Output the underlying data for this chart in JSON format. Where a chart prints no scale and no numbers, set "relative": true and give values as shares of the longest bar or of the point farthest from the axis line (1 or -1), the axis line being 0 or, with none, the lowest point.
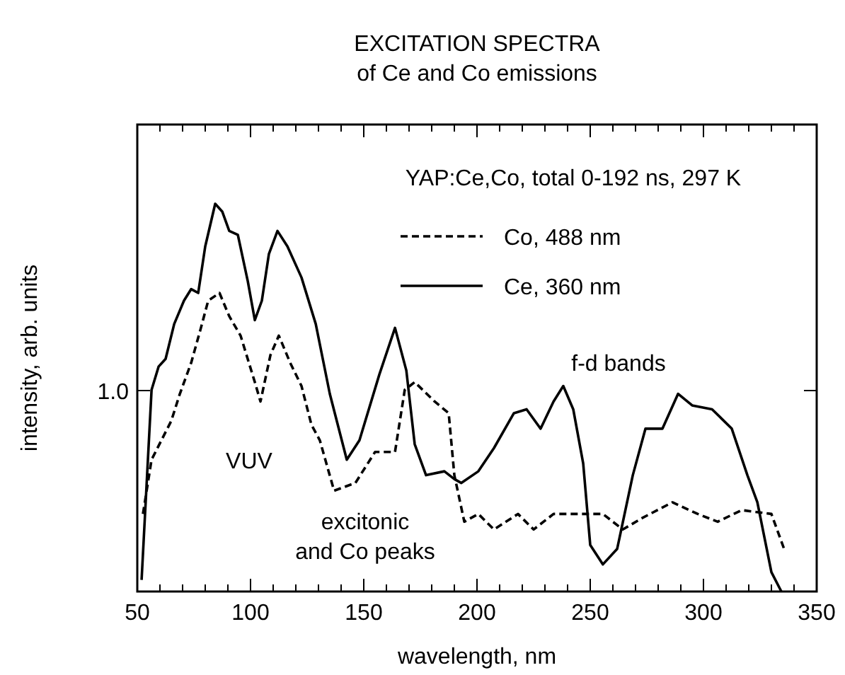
{
  "chart_data": {
    "type": "line",
    "title": "EXCITATION SPECTRA",
    "subtitle": "of Ce and Co emissions",
    "xlabel": "wavelength, nm",
    "ylabel": "intensity, arb. units",
    "relative": true,
    "legend": "top right",
    "xlim": [
      50,
      350
    ],
    "xticks": [
      50,
      {
        "value": 60,
        "label": null
      },
      {
        "value": 70,
        "label": null
      },
      {
        "value": 80,
        "label": null
      },
      {
        "value": 90,
        "label": null
      },
      100,
      {
        "value": 110,
        "label": null
      },
      {
        "value": 120,
        "label": null
      },
      {
        "value": 130,
        "label": null
      },
      {
        "value": 140,
        "label": null
      },
      150,
      {
        "value": 160,
        "label": null
      },
      {
        "value": 170,
        "label": null
      },
      {
        "value": 180,
        "label": null
      },
      {
        "value": 190,
        "label": null
      },
      200,
      {
        "value": 210,
        "label": null
      },
      {
        "value": 220,
        "label": null
      },
      {
        "value": 230,
        "label": null
      },
      {
        "value": 240,
        "label": null
      },
      250,
      {
        "value": 260,
        "label": null
      },
      {
        "value": 270,
        "label": null
      },
      {
        "value": 280,
        "label": null
      },
      {
        "value": 290,
        "label": null
      },
      300,
      {
        "value": 310,
        "label": null
      },
      {
        "value": 320,
        "label": null
      },
      {
        "value": 330,
        "label": null
      },
      {
        "value": 340,
        "label": null
      },
      350
    ],
    "annotations": [
      "YAP:Ce,Co, total 0-192 ns, 297 K",
      "VUV",
      "excitonic\nand Co peaks",
      "f-d bands",
      "1.0"
    ],
    "series": [
      {
        "name": "Co, 488 nm",
        "color": "#000000",
        "line_style": "dashed",
        "x": [
          52.5,
          56.3,
          65,
          68.8,
          73.8,
          78.1,
          81.3,
          86.3,
          90.6,
          95.6,
          101.9,
          104.4,
          108.8,
          112.5,
          117.5,
          122.5,
          126.9,
          130.6,
          136.9,
          146.3,
          155,
          163.8,
          168.1,
          172.5,
          181.3,
          187.5,
          190,
          194.4,
          200.6,
          207.5,
          218.1,
          225,
          233.8,
          244.4,
          255.6,
          264.4,
          273.1,
          286.3,
          297.5,
          306.3,
          316.9,
          330,
          335.6
        ],
        "values": [
          0.2,
          0.34,
          0.44,
          0.51,
          0.59,
          0.68,
          0.75,
          0.77,
          0.71,
          0.66,
          0.54,
          0.49,
          0.61,
          0.66,
          0.59,
          0.53,
          0.43,
          0.39,
          0.26,
          0.28,
          0.36,
          0.36,
          0.52,
          0.54,
          0.49,
          0.46,
          0.3,
          0.18,
          0.2,
          0.16,
          0.2,
          0.16,
          0.2,
          0.2,
          0.2,
          0.16,
          0.19,
          0.23,
          0.2,
          0.18,
          0.21,
          0.2,
          0.11
        ]
      },
      {
        "name": "Ce, 360 nm",
        "color": "#000000",
        "line_style": "solid",
        "x": [
          51.9,
          56.3,
          59.4,
          62.5,
          66.3,
          70.6,
          73.8,
          76.9,
          80,
          84.4,
          87.5,
          90.6,
          94.4,
          98.8,
          101.9,
          105,
          108.1,
          111.9,
          116.3,
          122.5,
          128.8,
          135,
          142.5,
          148.1,
          156.9,
          163.8,
          168.8,
          172.5,
          177.5,
          185.6,
          190,
          193.1,
          200.6,
          207.5,
          216.3,
          221.9,
          228.1,
          233.8,
          238.1,
          242.5,
          246.9,
          250,
          255.6,
          261.9,
          268.8,
          274.4,
          281.9,
          288.8,
          295,
          303.8,
          312.5,
          319.4,
          323.8,
          330,
          334.4
        ],
        "values": [
          0.03,
          0.52,
          0.58,
          0.6,
          0.69,
          0.75,
          0.78,
          0.77,
          0.89,
          1,
          0.98,
          0.93,
          0.92,
          0.8,
          0.7,
          0.75,
          0.87,
          0.93,
          0.89,
          0.81,
          0.69,
          0.51,
          0.34,
          0.39,
          0.56,
          0.68,
          0.57,
          0.38,
          0.3,
          0.31,
          0.29,
          0.28,
          0.31,
          0.37,
          0.46,
          0.47,
          0.42,
          0.49,
          0.53,
          0.47,
          0.33,
          0.12,
          0.07,
          0.11,
          0.3,
          0.42,
          0.42,
          0.51,
          0.48,
          0.47,
          0.42,
          0.3,
          0.23,
          0.05,
          0
        ]
      }
    ]
  }
}
